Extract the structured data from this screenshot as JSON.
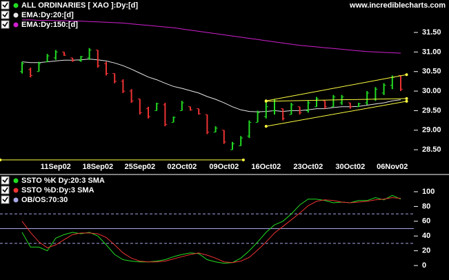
{
  "chart_data": [
    {
      "type": "ohlc",
      "source": "www.incrediblecharts.com",
      "categories": [
        null,
        null,
        null,
        null,
        "11Sep02",
        null,
        null,
        null,
        null,
        "18Sep02",
        null,
        null,
        null,
        null,
        "25Sep02",
        null,
        null,
        null,
        null,
        "02Oct02",
        null,
        null,
        null,
        null,
        "09Oct02",
        null,
        null,
        null,
        null,
        "16Oct02",
        null,
        null,
        null,
        null,
        "23Oct02",
        null,
        null,
        null,
        null,
        "30Oct02",
        null,
        null,
        null,
        null,
        "06Nov02",
        null
      ],
      "ohlc": {
        "name": "ALL ORDINARIES [ XAO ]:Dy:[d]",
        "color": "#22dd22",
        "down_color": "#ee3333",
        "open": [
          30.5,
          30.55,
          30.5,
          30.75,
          30.85,
          31.0,
          30.85,
          30.78,
          30.85,
          31.05,
          30.7,
          30.45,
          30.25,
          30.0,
          29.8,
          29.55,
          29.5,
          29.65,
          29.2,
          29.5,
          29.6,
          29.55,
          29.4,
          28.95,
          29.0,
          28.5,
          28.6,
          28.85,
          29.2,
          29.35,
          29.5,
          29.55,
          29.4,
          29.6,
          29.5,
          29.6,
          29.75,
          29.6,
          29.7,
          29.7,
          29.6,
          29.7,
          29.8,
          29.95,
          30.15,
          30.4
        ],
        "high": [
          30.75,
          30.6,
          30.75,
          30.95,
          31.05,
          31.0,
          30.85,
          30.9,
          31.1,
          31.05,
          30.75,
          30.45,
          30.3,
          30.05,
          29.8,
          29.6,
          29.7,
          29.7,
          29.35,
          29.75,
          29.6,
          29.55,
          29.4,
          29.1,
          29.0,
          28.7,
          28.85,
          29.25,
          29.5,
          29.7,
          29.8,
          29.55,
          29.7,
          29.6,
          29.75,
          29.85,
          29.75,
          29.9,
          29.9,
          29.7,
          29.7,
          30.0,
          30.1,
          30.2,
          30.4,
          30.4
        ],
        "low": [
          30.45,
          30.35,
          30.5,
          30.75,
          30.8,
          30.9,
          30.75,
          30.75,
          30.8,
          30.6,
          30.4,
          30.2,
          29.95,
          29.7,
          29.4,
          29.3,
          29.5,
          29.1,
          29.2,
          29.5,
          29.5,
          29.4,
          28.9,
          28.95,
          28.65,
          28.5,
          28.6,
          28.8,
          29.2,
          29.3,
          29.4,
          29.25,
          29.4,
          29.4,
          29.45,
          29.6,
          29.55,
          29.6,
          29.65,
          29.55,
          29.6,
          29.65,
          29.75,
          29.9,
          30.05,
          30.0
        ],
        "close": [
          30.7,
          30.4,
          30.7,
          30.9,
          31.0,
          30.92,
          30.78,
          30.88,
          31.05,
          30.65,
          30.45,
          30.25,
          30.0,
          29.75,
          29.45,
          29.35,
          29.68,
          29.15,
          29.33,
          29.7,
          29.52,
          29.42,
          28.95,
          29.05,
          28.7,
          28.65,
          28.8,
          29.2,
          29.45,
          29.6,
          29.75,
          29.3,
          29.65,
          29.45,
          29.7,
          29.8,
          29.6,
          29.85,
          29.85,
          29.6,
          29.68,
          29.95,
          30.05,
          30.15,
          30.35,
          30.05
        ]
      },
      "series": [
        {
          "name": "EMA:Dy:20:[d]",
          "color": "#e8e8e8",
          "values": [
            30.75,
            30.73,
            30.73,
            30.75,
            30.77,
            30.79,
            30.79,
            30.8,
            30.82,
            30.8,
            30.77,
            30.72,
            30.65,
            30.56,
            30.46,
            30.36,
            30.29,
            30.2,
            30.12,
            30.07,
            30.01,
            29.95,
            29.86,
            29.79,
            29.7,
            29.6,
            29.52,
            29.48,
            29.47,
            29.48,
            29.5,
            29.48,
            29.5,
            29.5,
            29.52,
            29.55,
            29.55,
            29.58,
            29.6,
            29.6,
            29.61,
            29.64,
            29.67,
            29.7,
            29.75,
            29.78
          ]
        },
        {
          "name": "EMA:Dy:150:[d]",
          "color": "#d020d0",
          "values": [
            31.82,
            31.82,
            31.81,
            31.81,
            31.8,
            31.8,
            31.79,
            31.79,
            31.78,
            31.77,
            31.76,
            31.75,
            31.74,
            31.72,
            31.7,
            31.68,
            31.66,
            31.64,
            31.62,
            31.59,
            31.56,
            31.53,
            31.5,
            31.47,
            31.44,
            31.41,
            31.38,
            31.35,
            31.32,
            31.29,
            31.26,
            31.23,
            31.2,
            31.17,
            31.15,
            31.13,
            31.11,
            31.09,
            31.07,
            31.05,
            31.03,
            31.01,
            31.0,
            30.99,
            30.98,
            30.97
          ]
        }
      ],
      "trendlines": [
        {
          "color": "#ffff40",
          "x": [
            29,
            45.7
          ],
          "values": [
            29.75,
            30.42
          ]
        },
        {
          "color": "#ffff40",
          "x": [
            29,
            45.7
          ],
          "values": [
            29.1,
            29.74
          ]
        },
        {
          "color": "#ffff40",
          "x": [
            29,
            45.7
          ],
          "values": [
            29.74,
            29.81
          ]
        },
        {
          "color": "#ffff40",
          "x": [
            -2.6,
            26.3
          ],
          "values": [
            28.24,
            28.24
          ]
        }
      ],
      "ylim": [
        27.92,
        32.33
      ],
      "yticks": [
        {
          "value": 28.5,
          "label": "28.50"
        },
        {
          "value": 29,
          "label": "29.00"
        },
        {
          "value": 29.5,
          "label": "29.50"
        },
        {
          "value": 30,
          "label": "30.00"
        },
        {
          "value": 30.5,
          "label": "30.50"
        },
        {
          "value": 31,
          "label": "31.00"
        },
        {
          "value": 31.5,
          "label": "31.50"
        }
      ]
    },
    {
      "type": "line",
      "series": [
        {
          "name": "SSTO %K Dy:20:3 SMA",
          "color": "#22dd22",
          "values": [
            45,
            25,
            25,
            20,
            37,
            42,
            45,
            43,
            45,
            40,
            28,
            15,
            8,
            6,
            5,
            5,
            6,
            8,
            12,
            15,
            17,
            16,
            8,
            5,
            3,
            4,
            10,
            20,
            32,
            45,
            55,
            60,
            70,
            82,
            90,
            90,
            88,
            85,
            86,
            85,
            88,
            88,
            92,
            89,
            95,
            90
          ]
        },
        {
          "name": "SSTO %D:Dy:3 SMA",
          "color": "#ee3333",
          "values": [
            60,
            45,
            32,
            24,
            28,
            35,
            42,
            44,
            44,
            43,
            38,
            28,
            17,
            10,
            6,
            5,
            5,
            6,
            9,
            12,
            15,
            17,
            14,
            10,
            5,
            4,
            6,
            11,
            21,
            32,
            44,
            53,
            62,
            71,
            81,
            87,
            89,
            88,
            86,
            85,
            86,
            87,
            89,
            90,
            92,
            91
          ]
        }
      ],
      "bands": {
        "name": "OB/OS:70:30",
        "color": "#a8a8e8",
        "values": [
          70,
          30
        ]
      },
      "midline": 50,
      "ylim": [
        -19.6,
        119.6
      ],
      "yticks": [
        0,
        20,
        40,
        60,
        80,
        100
      ]
    }
  ]
}
